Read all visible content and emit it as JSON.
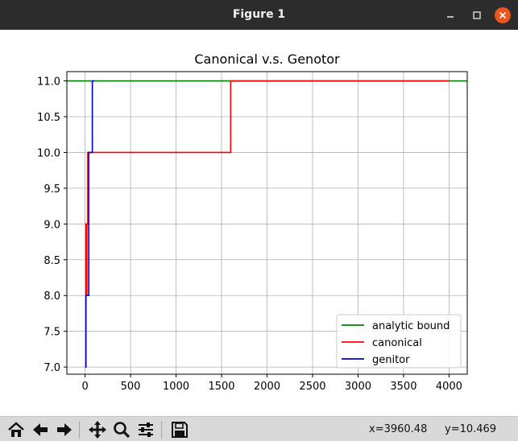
{
  "window": {
    "title": "Figure 1",
    "controls": {
      "minimize": "–",
      "maximize": "□",
      "close": "✕"
    }
  },
  "toolbar": {
    "buttons": [
      "home-icon",
      "back-arrow-icon",
      "forward-arrow-icon",
      "pan-icon",
      "zoom-icon",
      "subplots-icon",
      "save-icon"
    ],
    "coord_x": "x=3960.48",
    "coord_y": "y=10.469"
  },
  "chart_data": {
    "type": "line",
    "title": "Canonical v.s. Genotor",
    "xlabel": "",
    "ylabel": "",
    "xlim": [
      -200,
      4200
    ],
    "ylim": [
      6.9,
      11.13
    ],
    "grid": true,
    "x_ticks": [
      0,
      500,
      1000,
      1500,
      2000,
      2500,
      3000,
      3500,
      4000
    ],
    "y_ticks": [
      7.0,
      7.5,
      8.0,
      8.5,
      9.0,
      9.5,
      10.0,
      10.5,
      11.0
    ],
    "x_tick_labels": [
      "0",
      "500",
      "1000",
      "1500",
      "2000",
      "2500",
      "3000",
      "3500",
      "4000"
    ],
    "y_tick_labels": [
      "7.0",
      "7.5",
      "8.0",
      "8.5",
      "9.0",
      "9.5",
      "10.0",
      "10.5",
      "11.0"
    ],
    "legend_position": "lower-right",
    "series": [
      {
        "name": "analytic bound",
        "color": "#008000",
        "step": false,
        "x": [
          -200,
          4200
        ],
        "y": [
          11.0,
          11.0
        ]
      },
      {
        "name": "canonical",
        "color": "#ff0000",
        "step": true,
        "x": [
          0,
          10,
          20,
          30,
          1600,
          4000
        ],
        "y": [
          9.0,
          8.0,
          9.0,
          10.0,
          11.0,
          11.0
        ]
      },
      {
        "name": "genitor",
        "color": "#0000cc",
        "step": true,
        "x": [
          0,
          10,
          20,
          40,
          60,
          80,
          100
        ],
        "y": [
          7.0,
          8.0,
          8.0,
          10.0,
          10.0,
          11.0,
          11.0
        ]
      }
    ]
  }
}
